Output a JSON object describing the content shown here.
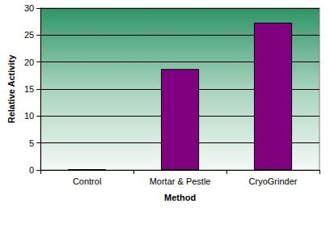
{
  "chart_data": {
    "type": "bar",
    "categories": [
      "Control",
      "Mortar & Pestle",
      "CryoGrinder"
    ],
    "values": [
      0.1,
      18.7,
      27.3
    ],
    "color": "#800080",
    "x_label": "Method",
    "y_label": "Relative Activity",
    "ylim": [
      0,
      30
    ],
    "yticks": [
      0,
      5,
      10,
      15,
      20,
      25,
      30
    ],
    "grid": true
  }
}
